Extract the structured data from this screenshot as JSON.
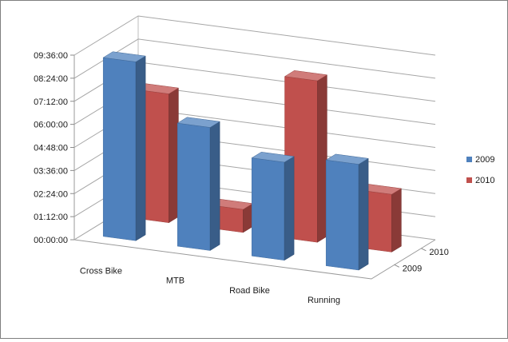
{
  "chart_data": {
    "type": "bar",
    "subtype": "3d-column",
    "title": "",
    "xlabel": "",
    "ylabel": "",
    "categories": [
      "Cross Bike",
      "MTB",
      "Road Bike",
      "Running"
    ],
    "depth_labels": [
      "2010",
      "2009"
    ],
    "y_ticks": [
      "00:00:00",
      "01:12:00",
      "02:24:00",
      "03:36:00",
      "04:48:00",
      "06:00:00",
      "07:12:00",
      "08:24:00",
      "09:36:00"
    ],
    "ylim_hours": [
      0,
      9.6
    ],
    "value_unit": "hours",
    "series": [
      {
        "name": "2009",
        "color": "#4F81BD",
        "values": [
          9.3,
          6.4,
          5.1,
          5.5
        ]
      },
      {
        "name": "2010",
        "color": "#C0504D",
        "values": [
          6.7,
          1.2,
          8.4,
          3.0
        ]
      }
    ],
    "legend_position": "right",
    "grid": true
  }
}
